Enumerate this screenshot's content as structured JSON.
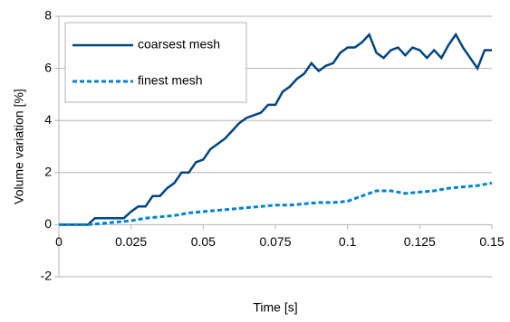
{
  "chart_data": {
    "type": "line",
    "x_label": "Time [s]",
    "y_label": "Volume variation [%]",
    "xlim": [
      0,
      0.15
    ],
    "xticks": [
      0,
      0.025,
      0.05,
      0.075,
      0.1,
      0.125,
      0.15
    ],
    "ylim": [
      -2,
      8
    ],
    "yticks": [
      -2,
      0,
      2,
      4,
      6,
      8
    ],
    "grid": true,
    "legend": "upper left",
    "series": [
      {
        "name": "coarsest mesh",
        "color": "#004586",
        "dash": false,
        "x": [
          0,
          0.0025,
          0.005,
          0.0075,
          0.01,
          0.0125,
          0.015,
          0.0175,
          0.02,
          0.0225,
          0.025,
          0.0275,
          0.03,
          0.0325,
          0.035,
          0.0375,
          0.04,
          0.0425,
          0.045,
          0.0475,
          0.05,
          0.0525,
          0.055,
          0.0575,
          0.06,
          0.0625,
          0.065,
          0.0675,
          0.07,
          0.0725,
          0.075,
          0.0775,
          0.08,
          0.0825,
          0.085,
          0.0875,
          0.09,
          0.0925,
          0.095,
          0.0975,
          0.1,
          0.1025,
          0.105,
          0.1075,
          0.11,
          0.1125,
          0.115,
          0.1175,
          0.12,
          0.1225,
          0.125,
          0.1275,
          0.13,
          0.1325,
          0.135,
          0.1375,
          0.14,
          0.1425,
          0.145,
          0.1475,
          0.15
        ],
        "values": [
          0,
          0,
          0,
          0,
          0,
          0.25,
          0.25,
          0.25,
          0.25,
          0.25,
          0.5,
          0.7,
          0.7,
          1.1,
          1.1,
          1.4,
          1.6,
          2.0,
          2.0,
          2.4,
          2.5,
          2.9,
          3.1,
          3.3,
          3.6,
          3.9,
          4.1,
          4.2,
          4.3,
          4.6,
          4.6,
          5.1,
          5.3,
          5.6,
          5.8,
          6.2,
          5.9,
          6.1,
          6.2,
          6.6,
          6.8,
          6.8,
          7.0,
          7.3,
          6.6,
          6.4,
          6.7,
          6.8,
          6.5,
          6.8,
          6.7,
          6.4,
          6.7,
          6.4,
          6.9,
          7.3,
          6.8,
          6.4,
          6.0,
          6.7,
          6.7
        ]
      },
      {
        "name": "finest mesh",
        "color": "#0084d1",
        "dash": true,
        "x": [
          0,
          0.005,
          0.01,
          0.015,
          0.02,
          0.025,
          0.03,
          0.035,
          0.04,
          0.045,
          0.05,
          0.055,
          0.06,
          0.065,
          0.07,
          0.075,
          0.08,
          0.085,
          0.09,
          0.095,
          0.1,
          0.105,
          0.11,
          0.115,
          0.12,
          0.125,
          0.13,
          0.135,
          0.14,
          0.145,
          0.15
        ],
        "values": [
          0,
          0,
          0,
          0.05,
          0.1,
          0.15,
          0.25,
          0.3,
          0.35,
          0.45,
          0.5,
          0.55,
          0.6,
          0.65,
          0.7,
          0.75,
          0.75,
          0.8,
          0.85,
          0.85,
          0.9,
          1.1,
          1.3,
          1.3,
          1.2,
          1.25,
          1.3,
          1.4,
          1.45,
          1.5,
          1.6
        ]
      }
    ]
  }
}
